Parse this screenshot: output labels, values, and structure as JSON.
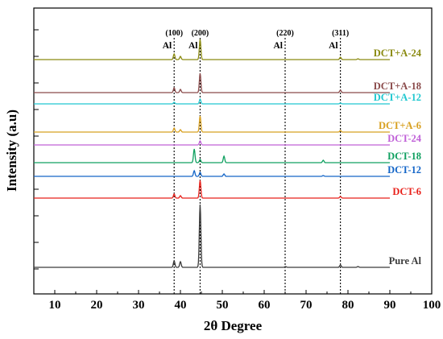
{
  "chart_data": {
    "type": "line",
    "xlabel": "2θ Degree",
    "ylabel": "Intensity (a.u)",
    "xlim": [
      5,
      100
    ],
    "xticks": [
      10,
      20,
      30,
      40,
      50,
      60,
      70,
      80,
      90,
      100
    ],
    "grid": false,
    "legend": "inline labels at right end of each trace",
    "reference_lines": [
      {
        "x": 38.5,
        "index": "(100)",
        "label": "Al"
      },
      {
        "x": 44.7,
        "index": "(200)",
        "label": "Al"
      },
      {
        "x": 65.0,
        "index": "(220)",
        "label": "Al"
      },
      {
        "x": 78.2,
        "index": "(311)",
        "label": "Al"
      }
    ],
    "series": [
      {
        "name": "Pure Al",
        "color": "#3a3a3a",
        "offset": 0,
        "peaks": [
          [
            38.5,
            8
          ],
          [
            40.0,
            7
          ],
          [
            44.7,
            78
          ],
          [
            65.1,
            1
          ],
          [
            78.2,
            3
          ],
          [
            82.4,
            1
          ]
        ]
      },
      {
        "name": "DCT-6",
        "color": "#e8201a",
        "offset": 86,
        "peaks": [
          [
            38.5,
            5
          ],
          [
            40.0,
            3
          ],
          [
            44.7,
            22
          ],
          [
            78.2,
            2
          ]
        ]
      },
      {
        "name": "DCT-12",
        "color": "#1466c8",
        "offset": 113,
        "peaks": [
          [
            43.3,
            7
          ],
          [
            44.7,
            5
          ],
          [
            50.4,
            3
          ],
          [
            74.1,
            1
          ]
        ]
      },
      {
        "name": "DCT-18",
        "color": "#10a060",
        "offset": 130,
        "peaks": [
          [
            43.3,
            17
          ],
          [
            44.7,
            4
          ],
          [
            50.4,
            8
          ],
          [
            74.1,
            3
          ]
        ]
      },
      {
        "name": "DCT-24",
        "color": "#c060d8",
        "offset": 152,
        "peaks": [
          [
            44.7,
            5
          ]
        ]
      },
      {
        "name": "DCT+A-6",
        "color": "#d8a020",
        "offset": 168,
        "peaks": [
          [
            38.5,
            5
          ],
          [
            40.0,
            3
          ],
          [
            44.7,
            20
          ],
          [
            78.2,
            2
          ]
        ]
      },
      {
        "name": "DCT+A-12",
        "color": "#20c8d0",
        "offset": 203,
        "peaks": [
          [
            38.5,
            2
          ],
          [
            44.7,
            6
          ],
          [
            78.2,
            1
          ]
        ]
      },
      {
        "name": "DCT+A-18",
        "color": "#8a4a4a",
        "offset": 217,
        "peaks": [
          [
            38.5,
            6
          ],
          [
            40.0,
            4
          ],
          [
            44.7,
            24
          ],
          [
            78.2,
            3
          ]
        ]
      },
      {
        "name": "DCT+A-24",
        "color": "#8a8a10",
        "offset": 258,
        "peaks": [
          [
            38.5,
            7
          ],
          [
            40.0,
            4
          ],
          [
            44.7,
            25
          ],
          [
            78.2,
            3
          ],
          [
            82.4,
            1
          ]
        ]
      }
    ]
  }
}
